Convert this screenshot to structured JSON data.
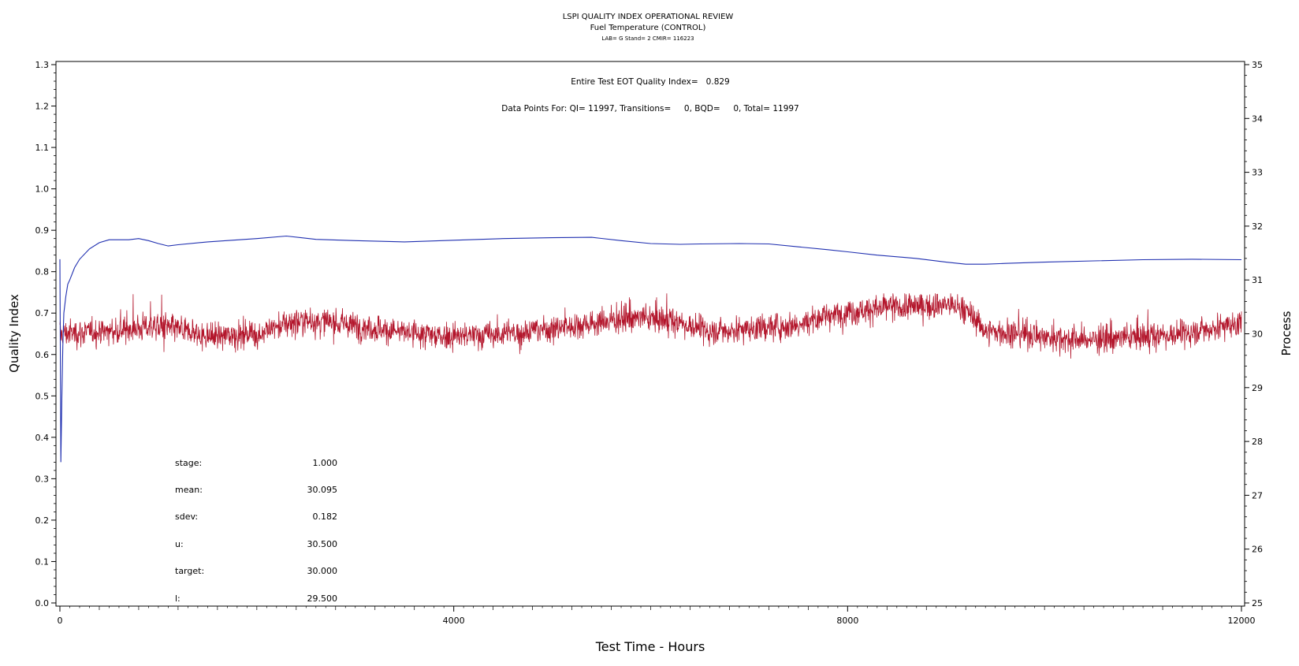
{
  "chart_data": {
    "type": "line",
    "title": "LSPI QUALITY INDEX OPERATIONAL REVIEW",
    "subtitle": "Fuel Temperature (CONTROL)",
    "subtitle2": "LAB= G Stand= 2 CMIR= 116223",
    "xlabel": "Test Time - Hours",
    "ylabel_left": "Quality Index",
    "ylabel_right": "Process",
    "xlim": [
      0,
      12000
    ],
    "ylim_left": [
      0,
      1.3
    ],
    "ylim_right": [
      25,
      35
    ],
    "x_ticks": [
      "0",
      "4000",
      "8000",
      "12000"
    ],
    "y_ticks_left": [
      "0.0",
      "0.1",
      "0.2",
      "0.3",
      "0.4",
      "0.5",
      "0.6",
      "0.7",
      "0.8",
      "0.9",
      "1.0",
      "1.1",
      "1.2",
      "1.3"
    ],
    "y_ticks_right": [
      "25",
      "26",
      "27",
      "28",
      "29",
      "30",
      "31",
      "32",
      "33",
      "34",
      "35"
    ],
    "annotations": {
      "eot": "Entire Test EOT Quality Index=   0.829",
      "points": "Data Points For: QI= 11997, Transitions=     0, BQD=     0, Total= 11997"
    },
    "stats": [
      {
        "label": "stage:",
        "value": "1.000"
      },
      {
        "label": "mean:",
        "value": "30.095"
      },
      {
        "label": "sdev:",
        "value": "0.182"
      },
      {
        "label": "u:",
        "value": "30.500"
      },
      {
        "label": "target:",
        "value": "30.000"
      },
      {
        "label": "l:",
        "value": "29.500"
      }
    ],
    "series": [
      {
        "axis": "left",
        "color": "#1f2fb0",
        "x": [
          0,
          10,
          20,
          30,
          40,
          60,
          80,
          100,
          150,
          200,
          300,
          400,
          500,
          600,
          700,
          800,
          900,
          1000,
          1100,
          1200,
          1500,
          2000,
          2300,
          2600,
          3000,
          3500,
          4000,
          4500,
          5000,
          5400,
          5700,
          6000,
          6300,
          6500,
          6900,
          7200,
          7500,
          7800,
          8000,
          8300,
          8700,
          9000,
          9200,
          9400,
          9600,
          10000,
          10500,
          11000,
          11500,
          12000
        ],
        "values": [
          0.83,
          0.34,
          0.5,
          0.62,
          0.7,
          0.74,
          0.77,
          0.78,
          0.81,
          0.83,
          0.855,
          0.87,
          0.877,
          0.877,
          0.877,
          0.88,
          0.875,
          0.868,
          0.862,
          0.865,
          0.872,
          0.88,
          0.886,
          0.878,
          0.875,
          0.872,
          0.876,
          0.88,
          0.882,
          0.883,
          0.875,
          0.868,
          0.866,
          0.867,
          0.868,
          0.867,
          0.86,
          0.853,
          0.848,
          0.84,
          0.832,
          0.823,
          0.818,
          0.818,
          0.82,
          0.823,
          0.826,
          0.829,
          0.83,
          0.829
        ]
      },
      {
        "axis": "right",
        "color": "#b3152b",
        "profile_x": [
          0,
          500,
          1000,
          1500,
          2000,
          2400,
          2800,
          3200,
          3600,
          4000,
          4500,
          5000,
          5400,
          5800,
          6200,
          6600,
          7000,
          7400,
          7800,
          8200,
          8600,
          9000,
          9200,
          9400,
          9800,
          10200,
          10600,
          11000,
          11400,
          11800,
          12000
        ],
        "profile_values": [
          30.0,
          30.05,
          30.15,
          29.95,
          30.0,
          30.25,
          30.2,
          30.1,
          30.0,
          29.95,
          30.0,
          30.1,
          30.2,
          30.3,
          30.25,
          30.05,
          30.1,
          30.15,
          30.35,
          30.45,
          30.5,
          30.55,
          30.45,
          30.05,
          30.0,
          29.9,
          29.9,
          29.95,
          30.0,
          30.15,
          30.2
        ],
        "mean": 30.095,
        "sdev": 0.182,
        "n": 11997
      }
    ]
  }
}
